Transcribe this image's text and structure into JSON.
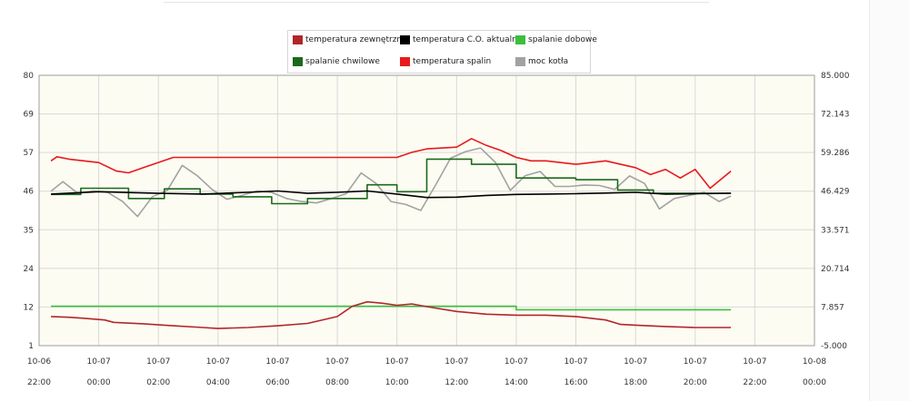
{
  "chart_data": {
    "type": "line",
    "title": "",
    "xlabel": "",
    "ylabel": "",
    "grid": true,
    "legend_placement": "top-center",
    "background_color": "#fdfcf3",
    "ylim": [
      1,
      80
    ],
    "y2lim": [
      -5,
      85
    ],
    "y_ticks": [
      "1",
      "12",
      "24",
      "35",
      "46",
      "57",
      "69",
      "80"
    ],
    "y2_ticks": [
      "-5.000",
      "7.857",
      "20.714",
      "33.571",
      "46.429",
      "59.286",
      "72.143",
      "85.000"
    ],
    "x_ticks": [
      {
        "date": "10-06",
        "time": "22:00"
      },
      {
        "date": "10-07",
        "time": "00:00"
      },
      {
        "date": "10-07",
        "time": "02:00"
      },
      {
        "date": "10-07",
        "time": "04:00"
      },
      {
        "date": "10-07",
        "time": "06:00"
      },
      {
        "date": "10-07",
        "time": "08:00"
      },
      {
        "date": "10-07",
        "time": "10:00"
      },
      {
        "date": "10-07",
        "time": "12:00"
      },
      {
        "date": "10-07",
        "time": "14:00"
      },
      {
        "date": "10-07",
        "time": "16:00"
      },
      {
        "date": "10-07",
        "time": "18:00"
      },
      {
        "date": "10-07",
        "time": "20:00"
      },
      {
        "date": "10-07",
        "time": "22:00"
      },
      {
        "date": "10-08",
        "time": "00:00"
      }
    ],
    "x_unit": "hours since 10-06 22:00",
    "xlim": [
      0,
      26
    ],
    "series": [
      {
        "name": "temperatura zewnętrzna",
        "color": "#b2262a",
        "axis": "left",
        "x": [
          0.4,
          1.0,
          1.5,
          2.2,
          2.5,
          3.5,
          4.5,
          5.5,
          6.0,
          7.0,
          8.0,
          9.0,
          10.0,
          10.5,
          11.0,
          11.5,
          12.0,
          12.5,
          13.0,
          14.0,
          15.0,
          16.0,
          17.0,
          18.0,
          19.0,
          19.5,
          20.0,
          21.0,
          22.0,
          23.2
        ],
        "values": [
          9.5,
          9.3,
          9.0,
          8.5,
          7.8,
          7.4,
          6.8,
          6.3,
          6.0,
          6.3,
          6.8,
          7.5,
          9.5,
          12.5,
          13.8,
          13.4,
          12.8,
          13.2,
          12.4,
          11.0,
          10.2,
          9.9,
          9.9,
          9.5,
          8.5,
          7.2,
          7.0,
          6.6,
          6.3,
          6.3
        ]
      },
      {
        "name": "temperatura C.O. aktualna",
        "color": "#000000",
        "axis": "left",
        "x": [
          0.4,
          2.0,
          4.0,
          5.5,
          7.0,
          8.0,
          9.0,
          10.0,
          11.0,
          12.0,
          13.0,
          14.0,
          15.0,
          16.0,
          17.0,
          18.0,
          19.0,
          20.0,
          21.0,
          22.0,
          23.2
        ],
        "values": [
          45.3,
          46.0,
          45.5,
          45.3,
          45.8,
          46.2,
          45.5,
          45.8,
          46.2,
          45.3,
          44.3,
          44.4,
          44.9,
          45.2,
          45.3,
          45.4,
          45.6,
          45.8,
          45.3,
          45.4,
          45.5
        ]
      },
      {
        "name": "spalanie dobowe",
        "color": "#3cbf3c",
        "axis": "left",
        "x": [
          0.4,
          16.0,
          16.0,
          23.2
        ],
        "values": [
          12.5,
          12.5,
          11.5,
          11.5
        ]
      },
      {
        "name": "spalanie chwilowe",
        "color": "#1b6a1b",
        "axis": "left",
        "x": [
          0.4,
          1.4,
          1.4,
          3.0,
          3.0,
          4.2,
          4.2,
          5.4,
          5.4,
          6.5,
          6.5,
          7.8,
          7.8,
          9.0,
          9.0,
          11.0,
          11.0,
          12.0,
          12.0,
          13.0,
          13.0,
          14.5,
          14.5,
          16.0,
          16.0,
          18.0,
          18.0,
          19.4,
          19.4,
          20.6,
          20.6,
          23.2
        ],
        "values": [
          45.2,
          45.2,
          47.0,
          47.0,
          44.0,
          44.0,
          46.8,
          46.8,
          45.3,
          45.3,
          44.5,
          44.5,
          42.5,
          42.5,
          44.0,
          44.0,
          48.0,
          48.0,
          46.0,
          46.0,
          55.5,
          55.5,
          54.0,
          54.0,
          50.0,
          50.0,
          49.5,
          49.5,
          46.5,
          46.5,
          45.5,
          45.5
        ]
      },
      {
        "name": "temperatura spalin",
        "color": "#e8191a",
        "axis": "left",
        "x": [
          0.4,
          0.6,
          1.0,
          2.0,
          2.6,
          3.0,
          3.5,
          4.5,
          5.2,
          6.0,
          7.0,
          8.0,
          9.0,
          10.0,
          11.0,
          12.0,
          12.5,
          13.0,
          14.0,
          14.5,
          15.0,
          15.5,
          16.0,
          16.5,
          17.0,
          18.0,
          19.0,
          20.0,
          20.5,
          21.0,
          21.5,
          22.0,
          22.5,
          23.2
        ],
        "values": [
          55.0,
          56.2,
          55.5,
          54.5,
          52.0,
          51.5,
          53.0,
          56.0,
          56.0,
          56.0,
          56.0,
          56.0,
          56.0,
          56.0,
          56.0,
          56.0,
          57.5,
          58.5,
          59.0,
          61.5,
          59.5,
          58.0,
          56.0,
          55.0,
          55.0,
          54.0,
          55.0,
          53.0,
          51.0,
          52.5,
          50.0,
          52.5,
          47.0,
          52.0
        ]
      },
      {
        "name": "moc kotła",
        "color": "#a2a2a2",
        "axis": "right",
        "x": [
          0.4,
          0.8,
          1.3,
          1.8,
          2.3,
          2.8,
          3.3,
          3.8,
          4.3,
          4.8,
          5.3,
          5.8,
          6.3,
          6.8,
          7.3,
          7.8,
          8.3,
          8.8,
          9.3,
          9.8,
          10.3,
          10.8,
          11.3,
          11.8,
          12.3,
          12.8,
          13.3,
          13.8,
          14.3,
          14.8,
          15.3,
          15.8,
          16.3,
          16.8,
          17.3,
          17.8,
          18.3,
          18.8,
          19.3,
          19.8,
          20.3,
          20.8,
          21.3,
          21.8,
          22.3,
          22.8,
          23.2
        ],
        "values": [
          46.4,
          49.6,
          45.7,
          46.5,
          46.0,
          43.0,
          38.0,
          44.6,
          46.7,
          55.0,
          51.6,
          47.0,
          43.7,
          45.0,
          46.5,
          46.0,
          44.0,
          43.0,
          42.5,
          44.0,
          45.6,
          52.5,
          49.0,
          43.0,
          42.0,
          40.0,
          48.5,
          57.4,
          59.6,
          60.8,
          56.0,
          46.7,
          51.6,
          53.0,
          48.0,
          48.0,
          48.5,
          48.3,
          47.0,
          51.5,
          49.0,
          40.5,
          44.0,
          45.0,
          46.0,
          43.0,
          44.8
        ]
      }
    ]
  }
}
